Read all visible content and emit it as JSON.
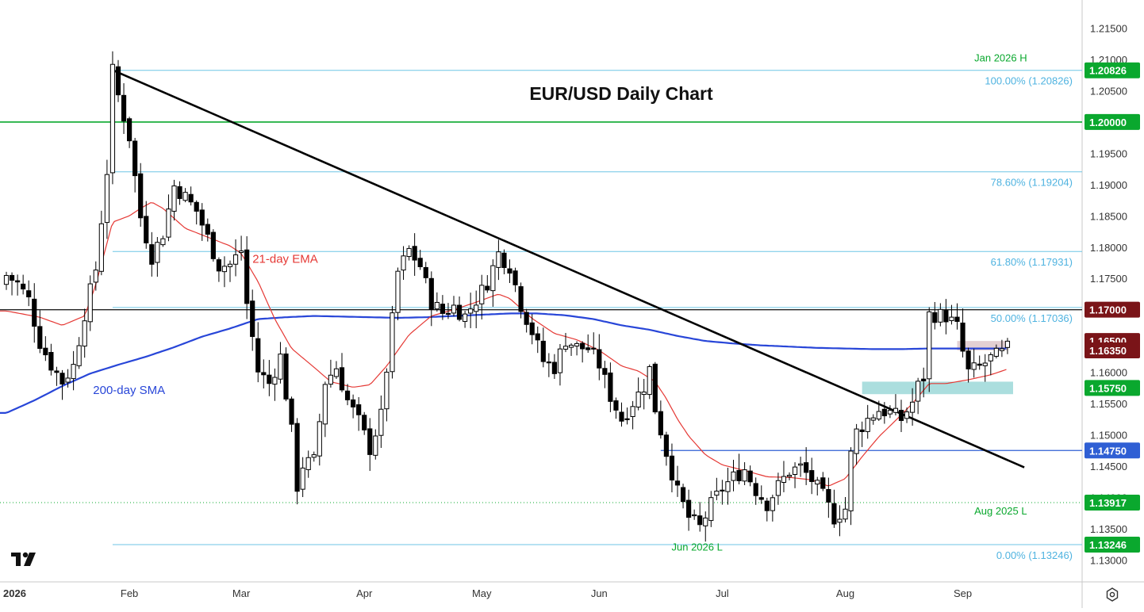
{
  "colors": {
    "up_body": "#ffffff",
    "down_body": "#000000",
    "candle_outline": "#000000",
    "trendline": "#000000",
    "ema": "#e53935",
    "sma": "#2846d8",
    "fib": "#6ec6e6",
    "fib_text": "#4fb3e0",
    "level_green": "#0aa82e",
    "level_blue": "#2f5fd4",
    "level_black": "#222222",
    "badge_dark_red": "#7a1418",
    "support_zone": "#8fd3d3",
    "resistance_zone": "#d9c0c4",
    "axis_text": "#333333",
    "grid_border": "#c8c8c8"
  },
  "chart_data": {
    "type": "candlestick",
    "title": "EUR/USD Daily Chart",
    "ylim": [
      1.1265,
      1.2195
    ],
    "y_ticks": [
      "1.21500",
      "1.21000",
      "1.20500",
      "1.20000",
      "1.19500",
      "1.19000",
      "1.18500",
      "1.18000",
      "1.17500",
      "1.17000",
      "1.16500",
      "1.16000",
      "1.15500",
      "1.15000",
      "1.14500",
      "1.14000",
      "1.13500",
      "1.13000"
    ],
    "x_ticks": [
      {
        "label": "2026",
        "bold": true,
        "day": 0
      },
      {
        "label": "Feb",
        "day": 22
      },
      {
        "label": "Mar",
        "day": 42
      },
      {
        "label": "Apr",
        "day": 64
      },
      {
        "label": "May",
        "day": 85
      },
      {
        "label": "Jun",
        "day": 106
      },
      {
        "label": "Jul",
        "day": 128
      },
      {
        "label": "Aug",
        "day": 150
      },
      {
        "label": "Sep",
        "day": 171
      }
    ],
    "x_domain": [
      0,
      195
    ],
    "series": [
      {
        "name": "21-day EMA",
        "kind": "line",
        "color_key": "ema"
      },
      {
        "name": "200-day SMA",
        "kind": "line",
        "color_key": "sma"
      }
    ],
    "ohlc_anchors": [
      [
        0,
        1.1755
      ],
      [
        2,
        1.1742
      ],
      [
        4,
        1.1716
      ],
      [
        6,
        1.1648
      ],
      [
        8,
        1.1612
      ],
      [
        10,
        1.1585
      ],
      [
        12,
        1.161
      ],
      [
        14,
        1.1694
      ],
      [
        16,
        1.1765
      ],
      [
        18,
        1.1922
      ],
      [
        19,
        1.2081
      ],
      [
        20,
        1.2042
      ],
      [
        22,
        1.1976
      ],
      [
        24,
        1.1848
      ],
      [
        26,
        1.1785
      ],
      [
        28,
        1.1822
      ],
      [
        30,
        1.1898
      ],
      [
        32,
        1.188
      ],
      [
        34,
        1.1858
      ],
      [
        36,
        1.1815
      ],
      [
        38,
        1.177
      ],
      [
        40,
        1.1772
      ],
      [
        42,
        1.1795
      ],
      [
        43,
        1.171
      ],
      [
        45,
        1.1602
      ],
      [
        47,
        1.1582
      ],
      [
        49,
        1.1625
      ],
      [
        51,
        1.1505
      ],
      [
        52,
        1.1418
      ],
      [
        53,
        1.1452
      ],
      [
        55,
        1.1458
      ],
      [
        57,
        1.1585
      ],
      [
        59,
        1.1608
      ],
      [
        61,
        1.1555
      ],
      [
        63,
        1.1522
      ],
      [
        65,
        1.1478
      ],
      [
        67,
        1.153
      ],
      [
        68,
        1.1606
      ],
      [
        70,
        1.176
      ],
      [
        72,
        1.1795
      ],
      [
        74,
        1.177
      ],
      [
        76,
        1.1712
      ],
      [
        78,
        1.1695
      ],
      [
        80,
        1.1705
      ],
      [
        82,
        1.169
      ],
      [
        84,
        1.1716
      ],
      [
        86,
        1.1744
      ],
      [
        88,
        1.179
      ],
      [
        90,
        1.177
      ],
      [
        92,
        1.1708
      ],
      [
        94,
        1.1665
      ],
      [
        96,
        1.1618
      ],
      [
        98,
        1.1608
      ],
      [
        100,
        1.1652
      ],
      [
        102,
        1.164
      ],
      [
        104,
        1.1638
      ],
      [
        106,
        1.1612
      ],
      [
        108,
        1.1562
      ],
      [
        110,
        1.1525
      ],
      [
        112,
        1.1552
      ],
      [
        114,
        1.1578
      ],
      [
        115,
        1.1605
      ],
      [
        116,
        1.1542
      ],
      [
        118,
        1.1472
      ],
      [
        120,
        1.1408
      ],
      [
        122,
        1.1368
      ],
      [
        124,
        1.1352
      ],
      [
        126,
        1.1388
      ],
      [
        128,
        1.1415
      ],
      [
        130,
        1.1432
      ],
      [
        132,
        1.1445
      ],
      [
        134,
        1.1412
      ],
      [
        136,
        1.139
      ],
      [
        138,
        1.1418
      ],
      [
        140,
        1.1442
      ],
      [
        142,
        1.1448
      ],
      [
        144,
        1.1428
      ],
      [
        146,
        1.1402
      ],
      [
        148,
        1.1368
      ],
      [
        150,
        1.1382
      ],
      [
        151,
        1.1468
      ],
      [
        152,
        1.1505
      ],
      [
        154,
        1.1525
      ],
      [
        156,
        1.154
      ],
      [
        158,
        1.1535
      ],
      [
        160,
        1.1525
      ],
      [
        162,
        1.1552
      ],
      [
        163,
        1.1578
      ],
      [
        164,
        1.1592
      ],
      [
        165,
        1.1692
      ],
      [
        166,
        1.1692
      ],
      [
        168,
        1.169
      ],
      [
        170,
        1.1672
      ],
      [
        171,
        1.1632
      ],
      [
        172,
        1.16
      ],
      [
        174,
        1.1608
      ],
      [
        176,
        1.1622
      ],
      [
        178,
        1.163
      ],
      [
        179,
        1.1638
      ]
    ],
    "ema_anchors": [
      [
        0,
        1.1698
      ],
      [
        6,
        1.1688
      ],
      [
        10,
        1.1675
      ],
      [
        14,
        1.169
      ],
      [
        16,
        1.174
      ],
      [
        19,
        1.184
      ],
      [
        22,
        1.185
      ],
      [
        24,
        1.1862
      ],
      [
        26,
        1.1872
      ],
      [
        28,
        1.1862
      ],
      [
        32,
        1.183
      ],
      [
        36,
        1.1816
      ],
      [
        40,
        1.1802
      ],
      [
        42,
        1.179
      ],
      [
        45,
        1.1745
      ],
      [
        48,
        1.1685
      ],
      [
        51,
        1.1638
      ],
      [
        55,
        1.1608
      ],
      [
        58,
        1.1585
      ],
      [
        62,
        1.1576
      ],
      [
        65,
        1.158
      ],
      [
        68,
        1.161
      ],
      [
        72,
        1.166
      ],
      [
        76,
        1.169
      ],
      [
        80,
        1.17
      ],
      [
        84,
        1.1712
      ],
      [
        88,
        1.1725
      ],
      [
        90,
        1.1718
      ],
      [
        94,
        1.1686
      ],
      [
        98,
        1.1662
      ],
      [
        102,
        1.1652
      ],
      [
        106,
        1.1635
      ],
      [
        110,
        1.161
      ],
      [
        113,
        1.1602
      ],
      [
        116,
        1.1585
      ],
      [
        118,
        1.1558
      ],
      [
        120,
        1.1525
      ],
      [
        122,
        1.1498
      ],
      [
        125,
        1.1468
      ],
      [
        128,
        1.1452
      ],
      [
        132,
        1.1443
      ],
      [
        136,
        1.1433
      ],
      [
        140,
        1.1432
      ],
      [
        144,
        1.1428
      ],
      [
        147,
        1.1418
      ],
      [
        150,
        1.143
      ],
      [
        153,
        1.1465
      ],
      [
        156,
        1.1497
      ],
      [
        159,
        1.1523
      ],
      [
        162,
        1.155
      ],
      [
        165,
        1.1582
      ],
      [
        168,
        1.1582
      ],
      [
        172,
        1.1588
      ],
      [
        176,
        1.1596
      ],
      [
        179,
        1.1605
      ]
    ],
    "sma_anchors": [
      [
        0,
        1.1535
      ],
      [
        5,
        1.1555
      ],
      [
        10,
        1.1578
      ],
      [
        15,
        1.1598
      ],
      [
        20,
        1.1612
      ],
      [
        25,
        1.1625
      ],
      [
        30,
        1.164
      ],
      [
        35,
        1.1657
      ],
      [
        40,
        1.167
      ],
      [
        45,
        1.1685
      ],
      [
        50,
        1.1688
      ],
      [
        55,
        1.169
      ],
      [
        60,
        1.1689
      ],
      [
        65,
        1.1688
      ],
      [
        70,
        1.1687
      ],
      [
        75,
        1.1688
      ],
      [
        80,
        1.169
      ],
      [
        85,
        1.1692
      ],
      [
        90,
        1.1694
      ],
      [
        95,
        1.1694
      ],
      [
        100,
        1.1691
      ],
      [
        105,
        1.1685
      ],
      [
        110,
        1.1675
      ],
      [
        115,
        1.1668
      ],
      [
        120,
        1.1658
      ],
      [
        125,
        1.165
      ],
      [
        130,
        1.1646
      ],
      [
        135,
        1.1643
      ],
      [
        140,
        1.1641
      ],
      [
        145,
        1.1639
      ],
      [
        150,
        1.1638
      ],
      [
        155,
        1.1637
      ],
      [
        160,
        1.1637
      ],
      [
        165,
        1.1638
      ],
      [
        170,
        1.1638
      ],
      [
        175,
        1.1638
      ],
      [
        179,
        1.1638
      ]
    ],
    "trendline": {
      "from": [
        19,
        1.2083
      ],
      "to": [
        182,
        1.1448
      ]
    },
    "zones": [
      {
        "name": "resistance-zone",
        "x0": 170,
        "x1": 179,
        "y0": 1.1635,
        "y1": 1.165,
        "color_key": "resistance_zone"
      },
      {
        "name": "support-zone",
        "x0": 153,
        "x1": 180,
        "y0": 1.1565,
        "y1": 1.1585,
        "color_key": "support_zone"
      }
    ],
    "fib_levels": [
      {
        "label": "100.00% (1.20826)",
        "value": 1.20826
      },
      {
        "label": "78.60% (1.19204)",
        "value": 1.19204
      },
      {
        "label": "61.80% (1.17931)",
        "value": 1.17931
      },
      {
        "label": "50.00% (1.17036)",
        "value": 1.17036
      },
      {
        "label": "0.00% (1.13246)",
        "value": 1.13246
      }
    ],
    "horizontal_levels": [
      {
        "value": 1.2,
        "color_key": "level_green",
        "width": 1.6,
        "full": true
      },
      {
        "value": 1.17,
        "color_key": "level_black",
        "width": 1.3,
        "full": true
      },
      {
        "value": 1.1475,
        "color_key": "level_blue",
        "width": 1.3,
        "from_day": 117
      },
      {
        "value": 1.13917,
        "color_key": "level_green",
        "width": 1,
        "dotted": true,
        "full": true
      }
    ],
    "price_badges": [
      {
        "label": "1.20826",
        "value": 1.20826,
        "color_key": "level_green"
      },
      {
        "label": "1.20000",
        "value": 1.2,
        "color_key": "level_green"
      },
      {
        "label": "1.17000",
        "value": 1.17,
        "color_key": "badge_dark_red"
      },
      {
        "label": "1.16500",
        "value": 1.165,
        "color_key": "badge_dark_red"
      },
      {
        "label": "1.16350",
        "value": 1.1635,
        "color_key": "badge_dark_red"
      },
      {
        "label": "1.15750",
        "value": 1.1575,
        "color_key": "level_green"
      },
      {
        "label": "1.14750",
        "value": 1.1475,
        "color_key": "level_blue"
      },
      {
        "label": "1.13917",
        "value": 1.13917,
        "color_key": "level_green"
      },
      {
        "label": "1.13246",
        "value": 1.13246,
        "color_key": "level_green"
      }
    ],
    "annotations": [
      {
        "name": "annotation-jan-high",
        "text": "Jan 2026 H",
        "day": 182.5,
        "value": 1.2097,
        "color_key": "level_green",
        "anchor": "end"
      },
      {
        "name": "annotation-aug-low",
        "text": "Aug 2025 L",
        "day": 182.5,
        "value": 1.1373,
        "color_key": "level_green",
        "anchor": "end"
      },
      {
        "name": "annotation-jun-low",
        "text": "Jun 2026 L",
        "day": 123.5,
        "value": 1.1315,
        "color_key": "level_green",
        "anchor": "middle"
      },
      {
        "name": "annotation-ema",
        "text": "21-day EMA",
        "day": 44,
        "value": 1.1775,
        "color_key": "ema",
        "anchor": "start"
      },
      {
        "name": "annotation-sma",
        "text": "200-day SMA",
        "day": 15.5,
        "value": 1.1565,
        "color_key": "sma",
        "anchor": "start"
      }
    ]
  }
}
